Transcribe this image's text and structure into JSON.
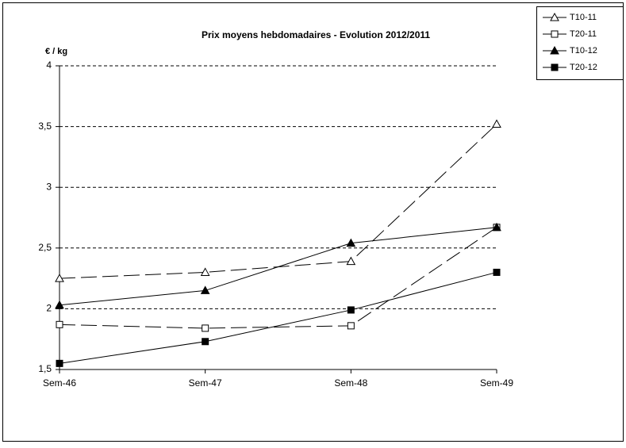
{
  "chart_data": {
    "type": "line",
    "title": "Prix moyens hebdomadaires - Evolution  2012/2011",
    "y_label": "€ / kg",
    "categories": [
      "Sem-46",
      "Sem-47",
      "Sem-48",
      "Sem-49"
    ],
    "series": [
      {
        "name": "T10-11",
        "color": "#000000",
        "line_style": "dashed",
        "marker": "triangle-open",
        "values": [
          2.25,
          2.3,
          2.39,
          3.52
        ]
      },
      {
        "name": "T20-11",
        "color": "#000000",
        "line_style": "dashed",
        "marker": "square-open",
        "values": [
          1.87,
          1.84,
          1.86,
          2.67
        ]
      },
      {
        "name": "T10-12",
        "color": "#000000",
        "line_style": "solid",
        "marker": "triangle-filled",
        "values": [
          2.03,
          2.15,
          2.54,
          2.67
        ]
      },
      {
        "name": "T20-12",
        "color": "#000000",
        "line_style": "solid",
        "marker": "square-filled",
        "values": [
          1.55,
          1.73,
          1.99,
          2.3
        ]
      }
    ],
    "ylim": [
      1.5,
      4
    ],
    "yticks": [
      {
        "value": 1.5,
        "label": "1,5"
      },
      2,
      {
        "value": 2.5,
        "label": "2,5"
      },
      3,
      {
        "value": 3.5,
        "label": "3,5"
      },
      4
    ],
    "grid": true,
    "legend": "top-right"
  }
}
